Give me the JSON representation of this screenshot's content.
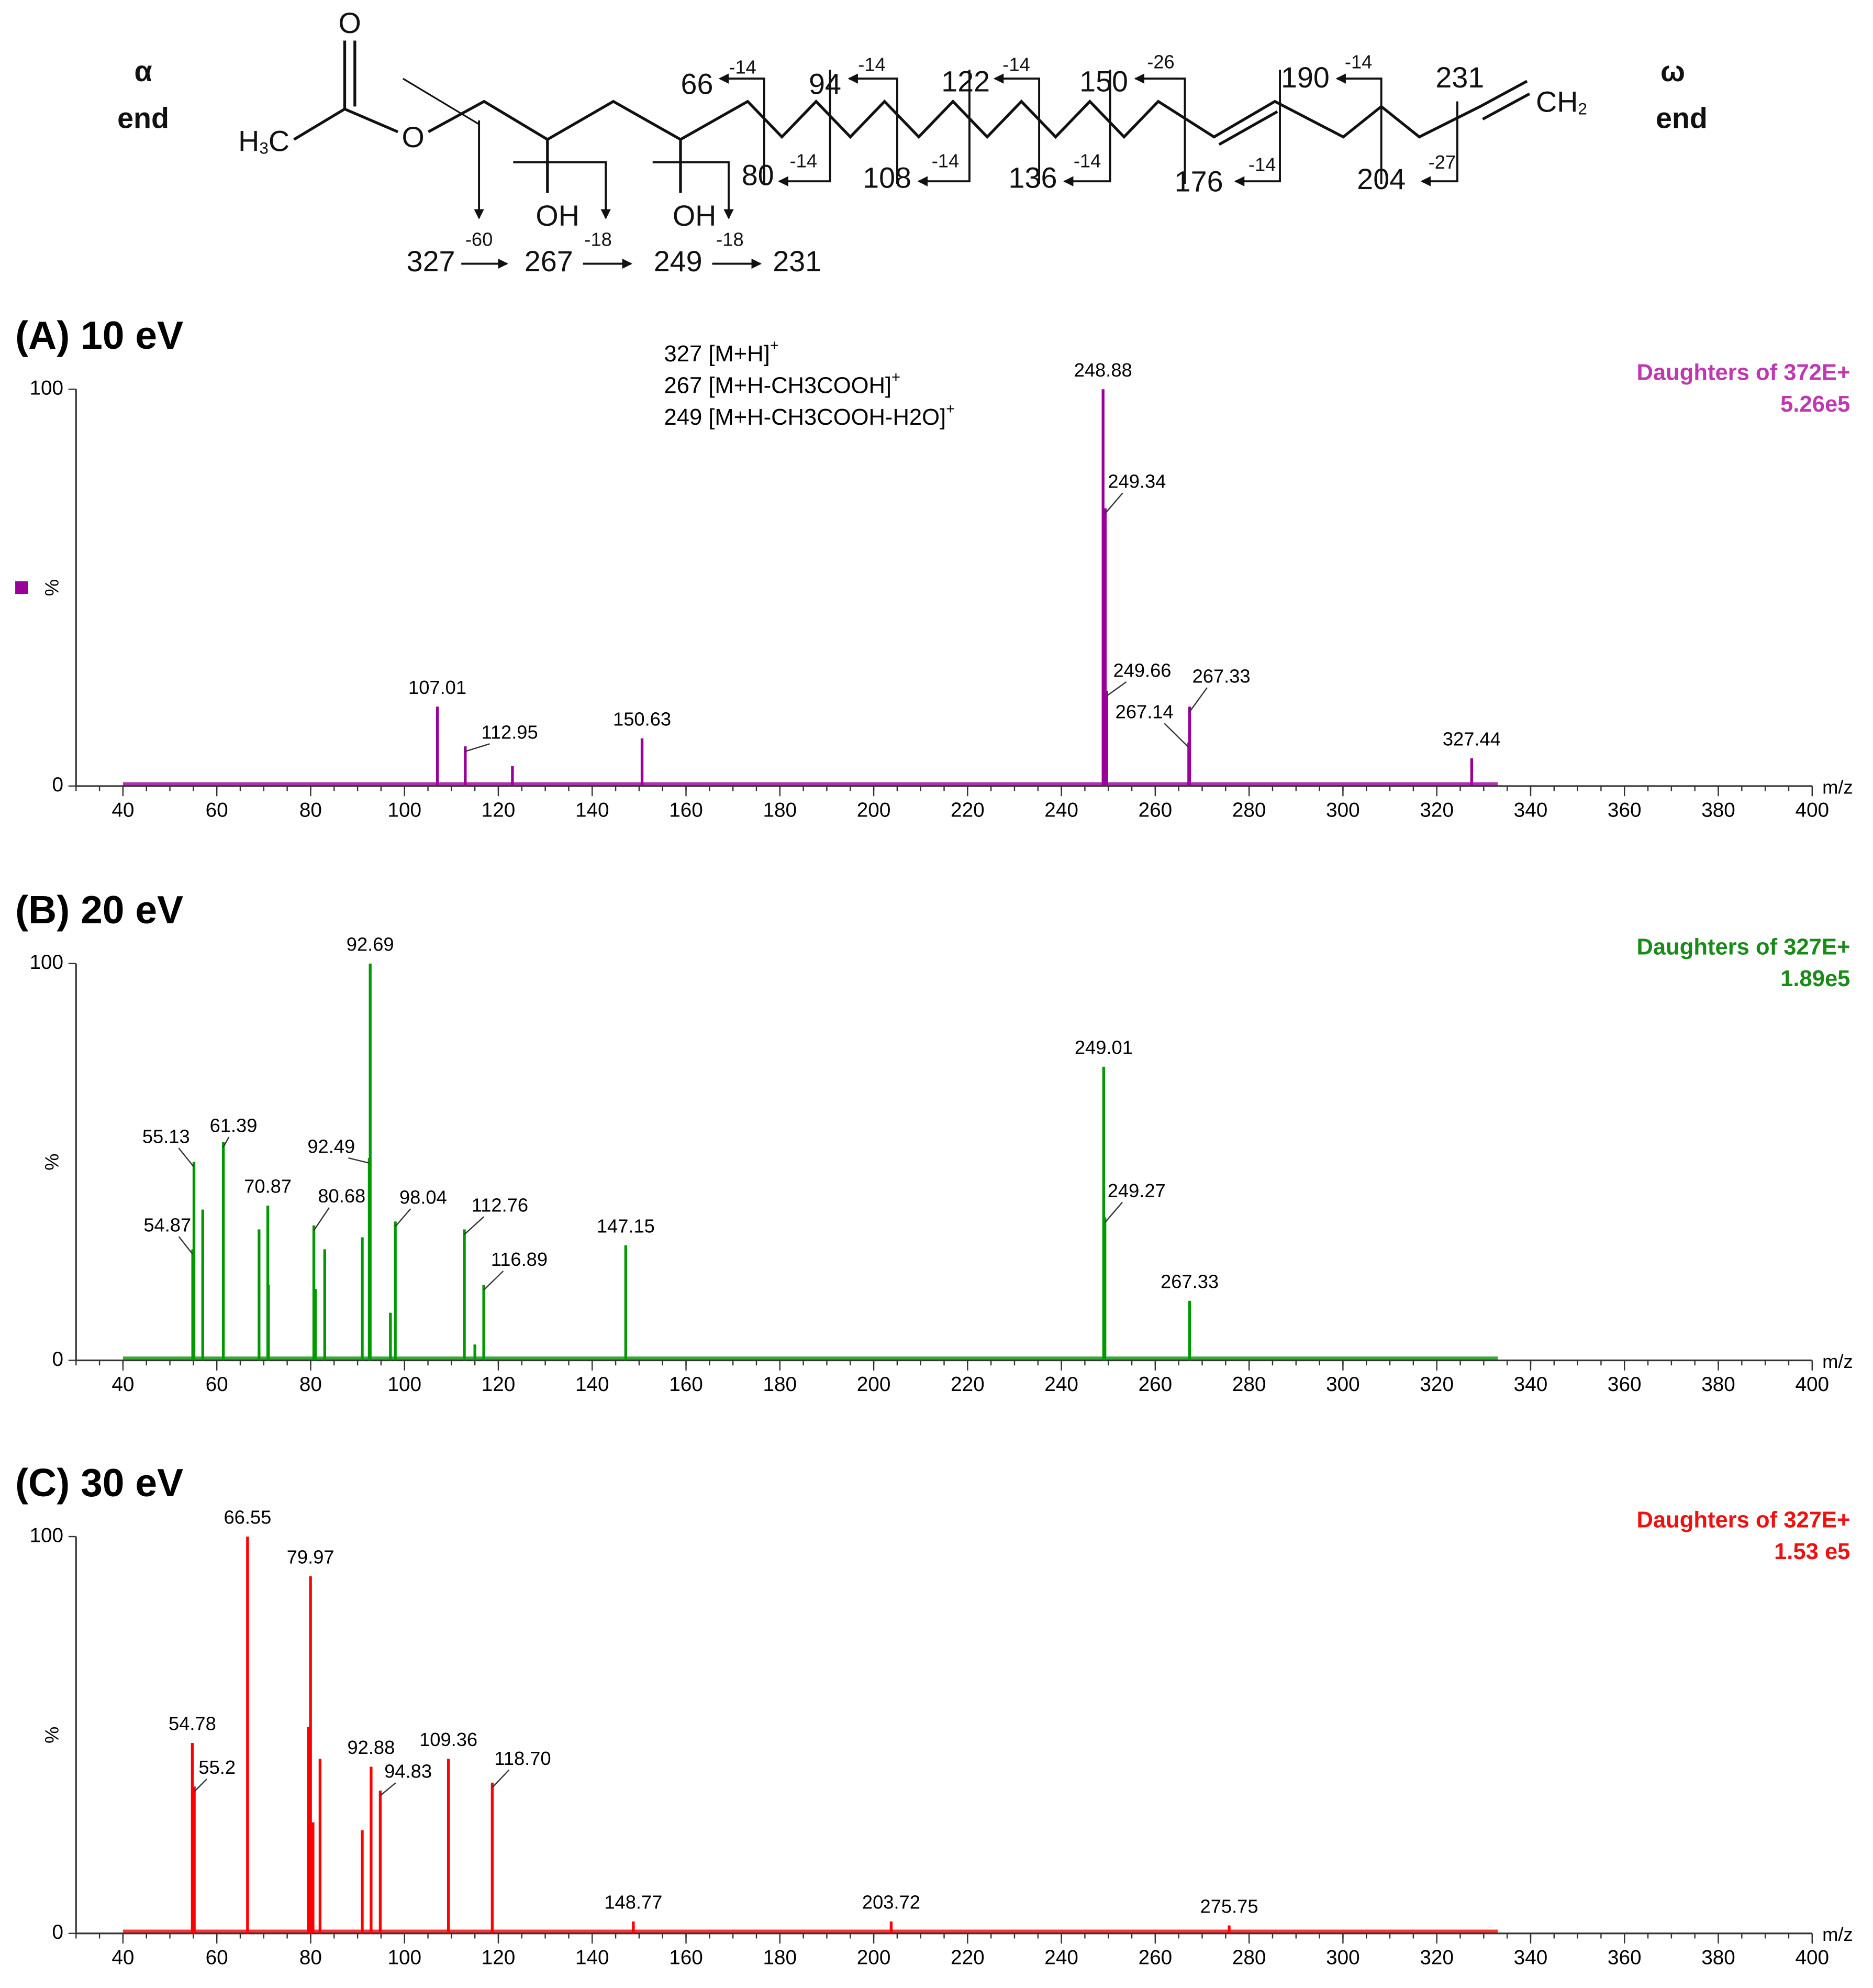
{
  "structure": {
    "alpha_symbol": "α",
    "alpha_label": "end",
    "omega_symbol": "ω",
    "omega_label": "end",
    "methyl": [
      "H",
      "3",
      "C"
    ],
    "oxygen": "O",
    "hydroxyl": "OH",
    "methylene": [
      "CH",
      "2"
    ],
    "upper_fragments": [
      {
        "mass": 66,
        "loss": -14
      },
      {
        "mass": 94,
        "loss": -14
      },
      {
        "mass": 122,
        "loss": -14
      },
      {
        "mass": 150,
        "loss": -26
      },
      {
        "mass": 190,
        "loss": -14
      }
    ],
    "terminal_fragment": 231,
    "lower_fragments": [
      {
        "mass": 80,
        "loss": -14
      },
      {
        "mass": 108,
        "loss": -14
      },
      {
        "mass": 136,
        "loss": -14
      },
      {
        "mass": 176,
        "loss": -14
      },
      {
        "mass": 204,
        "loss": -27
      }
    ],
    "neutral_losses": [
      {
        "mass": 327,
        "loss": -60
      },
      {
        "mass": 267,
        "loss": -18
      },
      {
        "mass": 249,
        "loss": -18
      }
    ],
    "final_fragment": 231
  },
  "chart_data": [
    {
      "type": "bar",
      "title": "(A) 10 eV",
      "legend_lines": [
        "Daughters of 372E+",
        "5.26e5"
      ],
      "color": "#990099",
      "text_color": "#c038b0",
      "annotations": [
        "327 [M+H]",
        "267 [M+H-CH3COOH]",
        "249 [M+H-CH3COOH-H2O]"
      ],
      "annotation_sup": "+",
      "x": [
        107.01,
        112.95,
        123.0,
        150.63,
        248.88,
        249.34,
        249.66,
        267.14,
        267.33,
        327.44
      ],
      "values": [
        20,
        10,
        5,
        12,
        100,
        70,
        24,
        11,
        20,
        7
      ],
      "x_labels": [
        "107.01",
        "112.95",
        null,
        "150.63",
        "248.88",
        "249.34",
        "249.66",
        "267.14",
        "267.33",
        "327.44"
      ],
      "xlim": [
        30,
        400
      ],
      "xticks": [
        40,
        60,
        80,
        100,
        120,
        140,
        160,
        180,
        200,
        220,
        240,
        260,
        280,
        300,
        320,
        340,
        360,
        380,
        400
      ],
      "ylim": [
        0,
        100
      ],
      "yticks": [
        0,
        100
      ],
      "ylabel": "%",
      "xlabel": "m/z"
    },
    {
      "type": "bar",
      "title": "(B) 20 eV",
      "legend_lines": [
        "Daughters of 327E+",
        "1.89e5"
      ],
      "color": "#009900",
      "text_color": "#1a8a1a",
      "x": [
        54.87,
        55.13,
        57.0,
        61.39,
        69.0,
        70.87,
        71.0,
        80.68,
        81.0,
        83.0,
        91.0,
        92.49,
        92.69,
        97.0,
        98.04,
        112.76,
        115.0,
        116.89,
        147.15,
        249.01,
        249.27,
        267.33
      ],
      "values": [
        28,
        50,
        38,
        55,
        33,
        39,
        19,
        34,
        18,
        28,
        31,
        51,
        100,
        12,
        35,
        33,
        4,
        19,
        29,
        74,
        36,
        15
      ],
      "x_labels": [
        "54.87",
        "55.13",
        null,
        "61.39",
        null,
        "70.87",
        null,
        "80.68",
        null,
        null,
        null,
        "92.49",
        "92.69",
        null,
        "98.04",
        "112.76",
        null,
        "116.89",
        "147.15",
        "249.01",
        "249.27",
        "267.33"
      ],
      "xlim": [
        30,
        400
      ],
      "xticks": [
        40,
        60,
        80,
        100,
        120,
        140,
        160,
        180,
        200,
        220,
        240,
        260,
        280,
        300,
        320,
        340,
        360,
        380,
        400
      ],
      "ylim": [
        0,
        100
      ],
      "yticks": [
        0,
        100
      ],
      "ylabel": "%",
      "xlabel": "m/z"
    },
    {
      "type": "bar",
      "title": "(C) 30 eV",
      "legend_lines": [
        "Daughters of 327E+",
        "1.53 e5"
      ],
      "color": "#ff0000",
      "text_color": "#ee1111",
      "x": [
        54.78,
        55.2,
        66.55,
        79.5,
        79.97,
        80.5,
        82.0,
        91.0,
        92.88,
        94.83,
        109.36,
        118.7,
        148.77,
        203.72,
        275.75
      ],
      "values": [
        48,
        37,
        100,
        52,
        90,
        28,
        44,
        26,
        42,
        36,
        44,
        38,
        3,
        3,
        2
      ],
      "x_labels": [
        "54.78",
        "55.2",
        "66.55",
        null,
        "79.97",
        null,
        null,
        null,
        "92.88",
        "94.83",
        "109.36",
        "118.70",
        "148.77",
        "203.72",
        "275.75"
      ],
      "xlim": [
        30,
        400
      ],
      "xticks": [
        40,
        60,
        80,
        100,
        120,
        140,
        160,
        180,
        200,
        220,
        240,
        260,
        280,
        300,
        320,
        340,
        360,
        380,
        400
      ],
      "ylim": [
        0,
        100
      ],
      "yticks": [
        0,
        100
      ],
      "ylabel": "%",
      "xlabel": "m/z"
    }
  ]
}
